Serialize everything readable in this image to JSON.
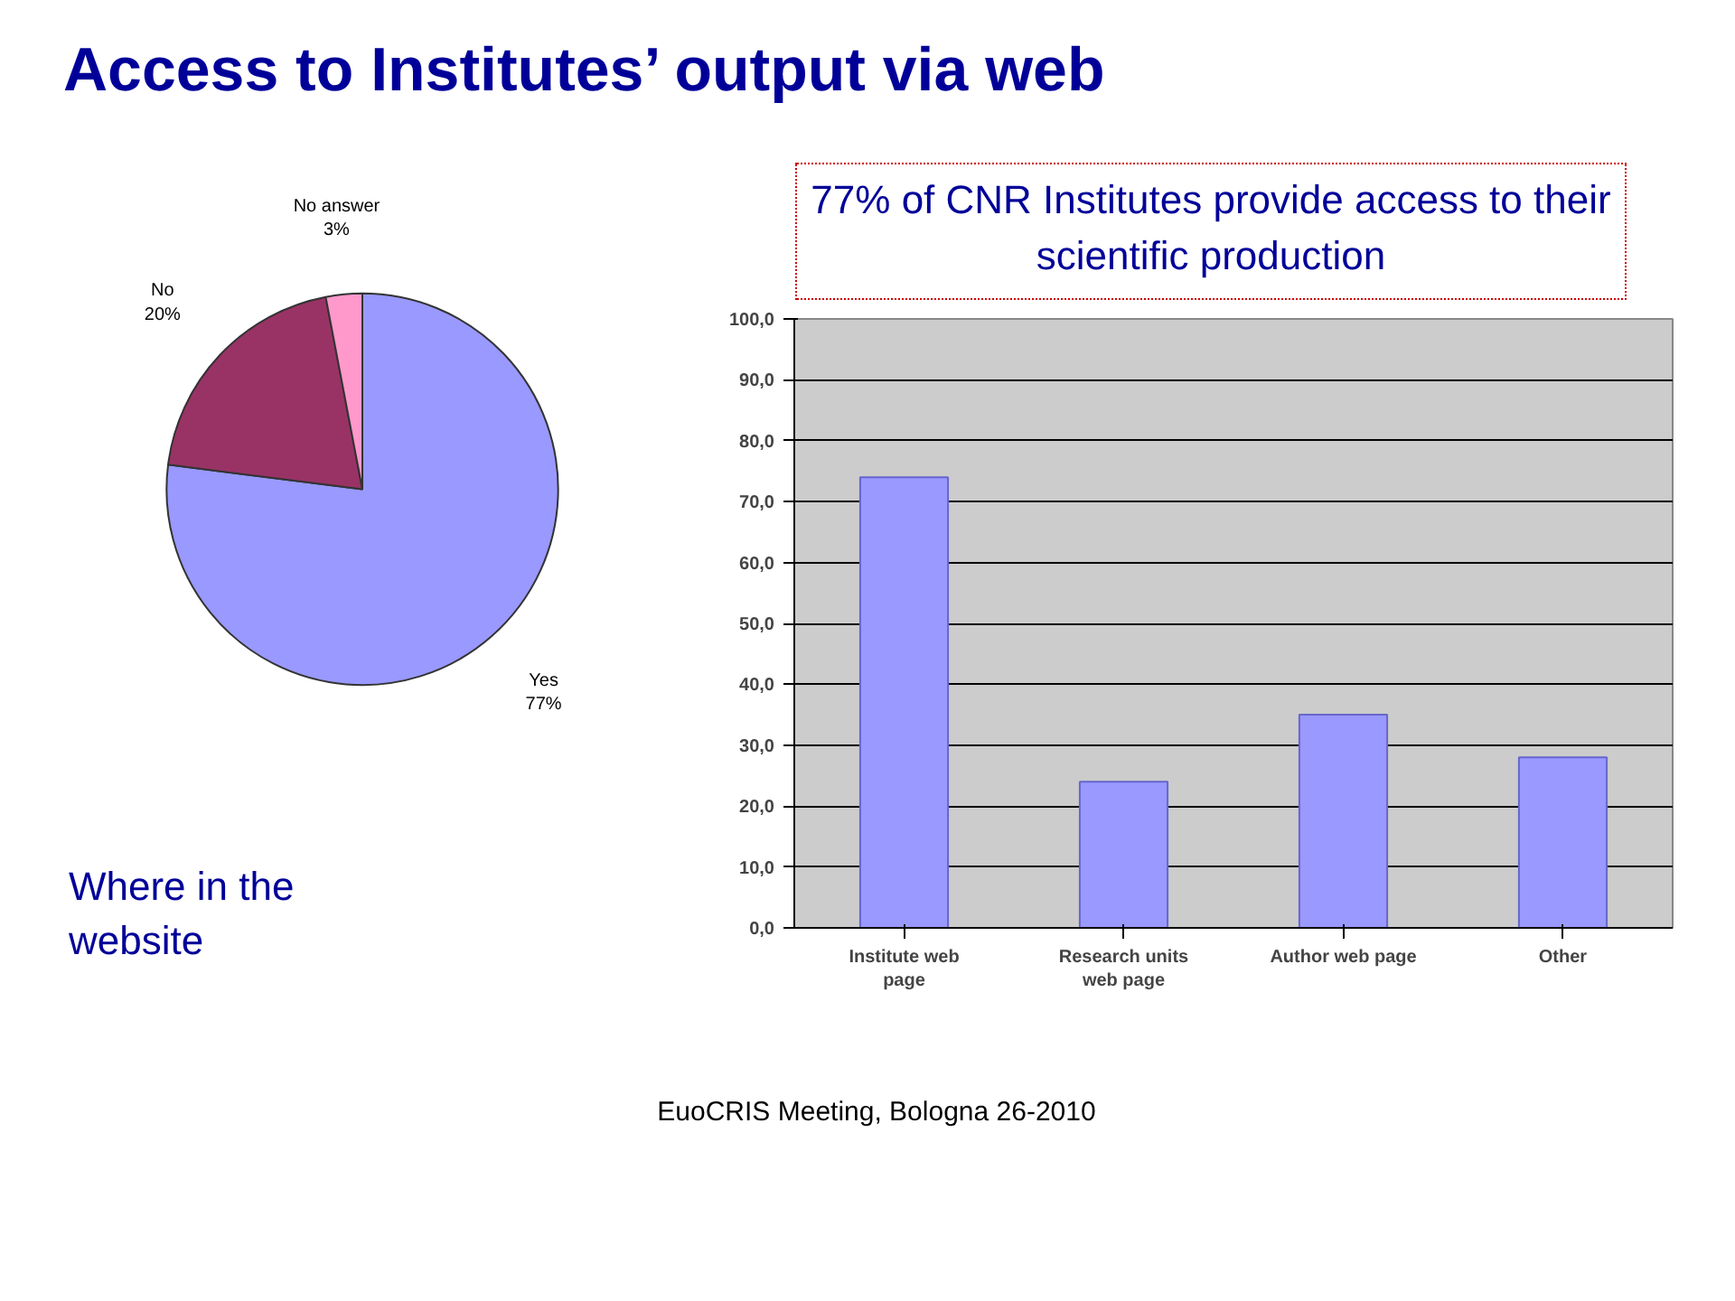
{
  "chart_data": [
    {
      "type": "pie",
      "title": "Access to Institutes’ output via web",
      "categories": [
        "Yes",
        "No",
        "No answer"
      ],
      "values": [
        77,
        20,
        3
      ],
      "colors": [
        "#9999ff",
        "#993366",
        "#ff99cc"
      ],
      "value_labels": [
        "77%",
        "20%",
        "3%"
      ],
      "annotations": [
        "77% of CNR Institutes provide access to their scientific production",
        "Where in the website",
        "EuoCRIS Meeting, Bologna 26-2010"
      ]
    },
    {
      "type": "bar",
      "categories": [
        "Institute web page",
        "Research units web page",
        "Author web page",
        "Other"
      ],
      "values": [
        74,
        24,
        35,
        28
      ],
      "color": "#9999ff",
      "ylim": [
        0,
        100
      ],
      "yticks": [
        {
          "value": 0,
          "label": "0,0"
        },
        {
          "value": 10,
          "label": "10,0"
        },
        {
          "value": 20,
          "label": "20,0"
        },
        {
          "value": 30,
          "label": "30,0"
        },
        {
          "value": 40,
          "label": "40,0"
        },
        {
          "value": 50,
          "label": "50,0"
        },
        {
          "value": 60,
          "label": "60,0"
        },
        {
          "value": 70,
          "label": "70,0"
        },
        {
          "value": 80,
          "label": "80,0"
        },
        {
          "value": 90,
          "label": "90,0"
        },
        {
          "value": 100,
          "label": "100,0"
        }
      ],
      "grid": "y"
    }
  ]
}
